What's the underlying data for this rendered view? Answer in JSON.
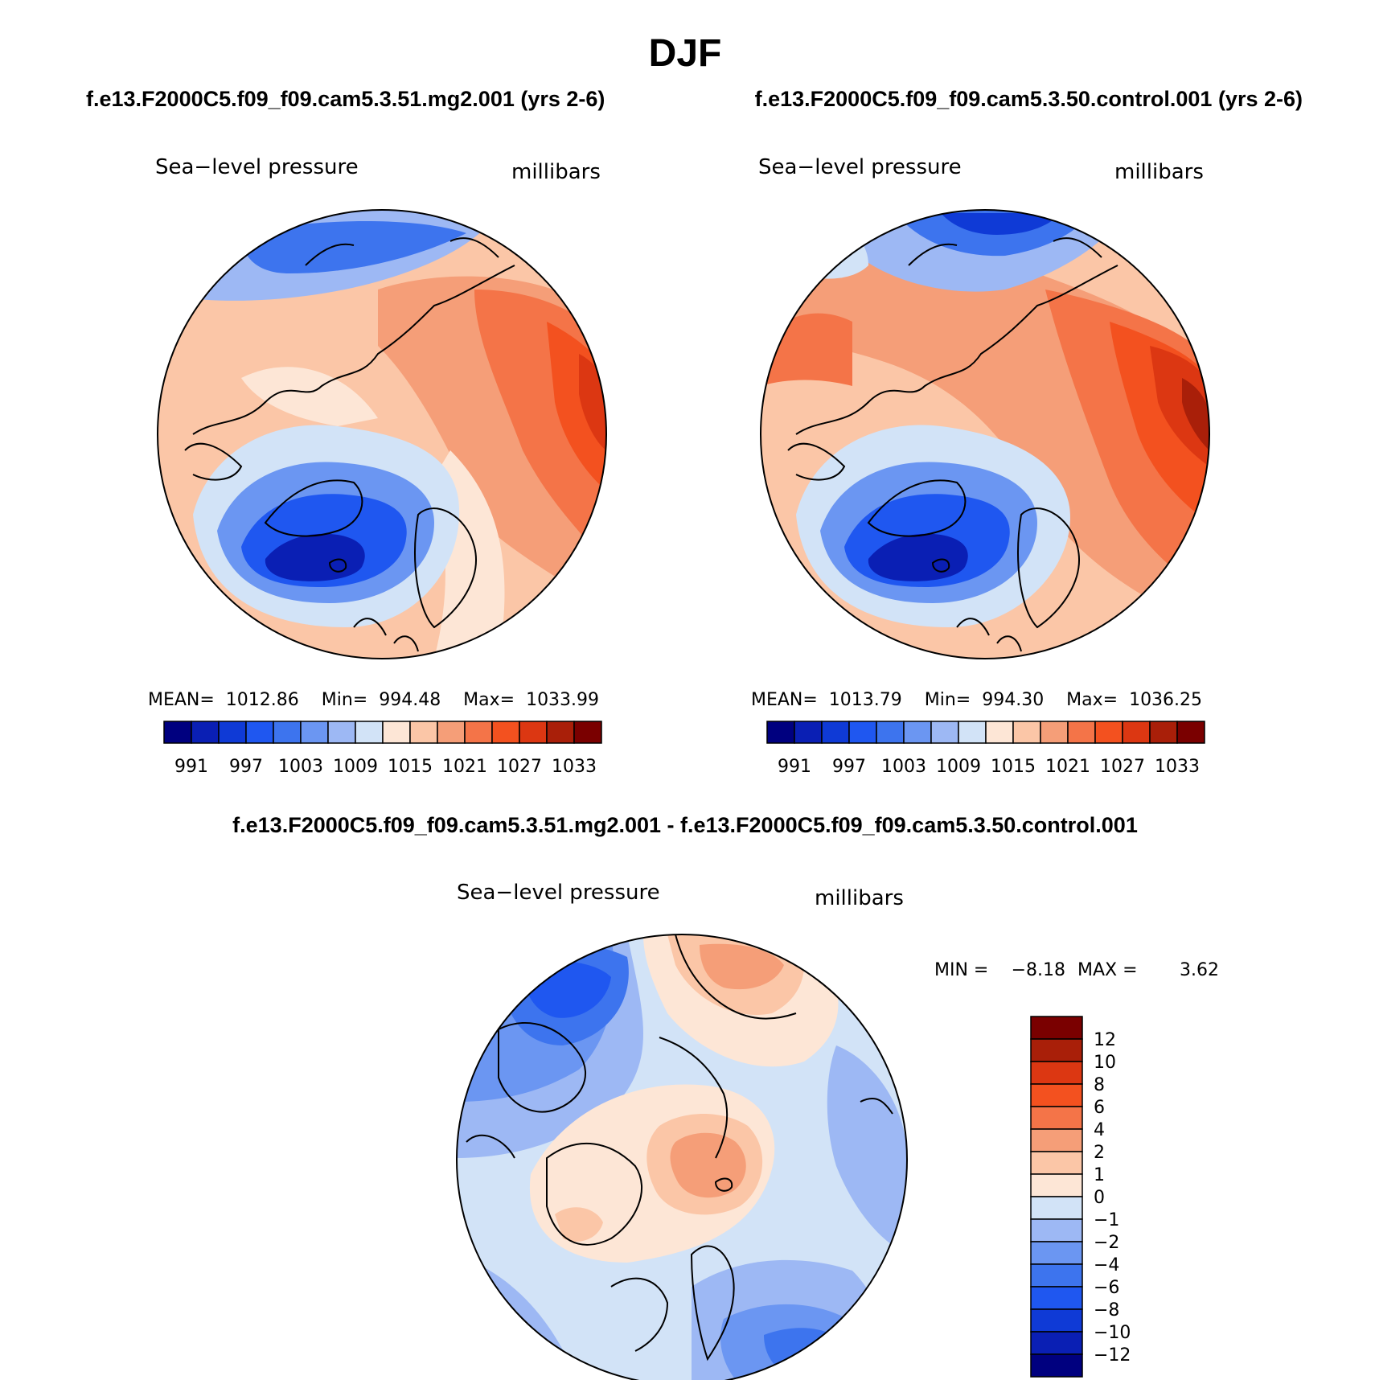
{
  "title": "DJF",
  "panels": [
    {
      "case_title": "f.e13.F2000C5.f09_f09.cam5.3.51.mg2.001 (yrs 2-6)",
      "variable": "Sea−level pressure",
      "units": "millibars",
      "stats": "MEAN=  1012.86    Min=  994.48    Max=  1033.99",
      "colorbar": {
        "colors": [
          "#00007f",
          "#0a1fb4",
          "#0f3ad6",
          "#1f57f0",
          "#3d74ee",
          "#6b96f2",
          "#9db8f4",
          "#d2e3f7",
          "#fde6d6",
          "#fbc6a7",
          "#f59e78",
          "#f47448",
          "#f3511f",
          "#dc3712",
          "#a91f09",
          "#7a0000"
        ],
        "labels": [
          "991",
          "997",
          "1003",
          "1009",
          "1015",
          "1021",
          "1027",
          "1033"
        ]
      }
    },
    {
      "case_title": "f.e13.F2000C5.f09_f09.cam5.3.50.control.001 (yrs 2-6)",
      "variable": "Sea−level pressure",
      "units": "millibars",
      "stats": "MEAN=  1013.79    Min=  994.30    Max=  1036.25",
      "colorbar": {
        "colors": [
          "#00007f",
          "#0a1fb4",
          "#0f3ad6",
          "#1f57f0",
          "#3d74ee",
          "#6b96f2",
          "#9db8f4",
          "#d2e3f7",
          "#fde6d6",
          "#fbc6a7",
          "#f59e78",
          "#f47448",
          "#f3511f",
          "#dc3712",
          "#a91f09",
          "#7a0000"
        ],
        "labels": [
          "991",
          "997",
          "1003",
          "1009",
          "1015",
          "1021",
          "1027",
          "1033"
        ]
      }
    }
  ],
  "diff": {
    "title": "f.e13.F2000C5.f09_f09.cam5.3.51.mg2.001 - f.e13.F2000C5.f09_f09.cam5.3.50.control.001",
    "variable": "Sea−level pressure",
    "units": "millibars",
    "min_label": "MIN =",
    "min_value": "−8.18",
    "max_label": "MAX =",
    "max_value": "3.62",
    "colorbar": {
      "colors": [
        "#7a0000",
        "#a91f09",
        "#dc3712",
        "#f3511f",
        "#f47448",
        "#f59e78",
        "#fbc6a7",
        "#fde6d6",
        "#d2e3f7",
        "#9db8f4",
        "#6b96f2",
        "#3d74ee",
        "#1f57f0",
        "#0f3ad6",
        "#0a1fb4",
        "#00007f"
      ],
      "labels": [
        "12",
        "10",
        "8",
        "6",
        "4",
        "2",
        "1",
        "0",
        "−1",
        "−2",
        "−4",
        "−6",
        "−8",
        "−10",
        "−12"
      ]
    }
  }
}
